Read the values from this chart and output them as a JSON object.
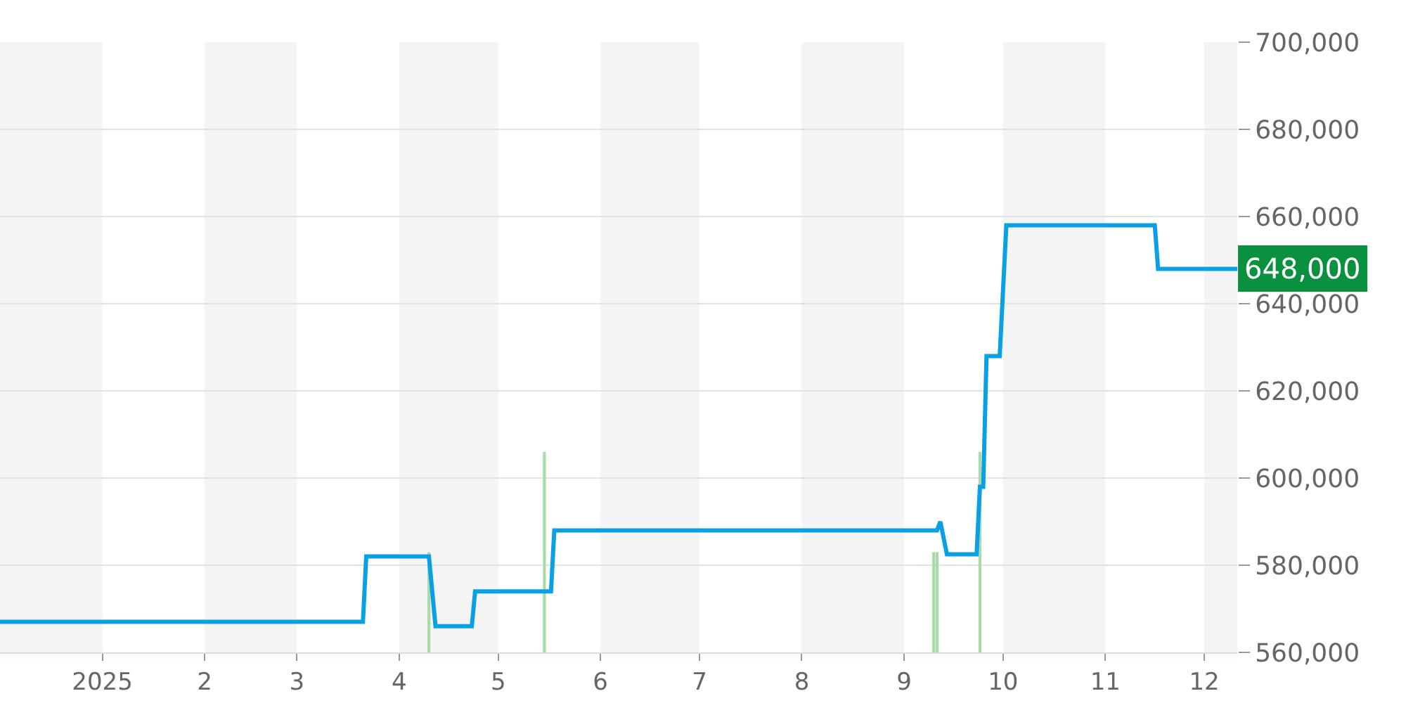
{
  "chart_data": {
    "type": "line",
    "xlim": [
      "2024-12-01",
      "2025-12-11"
    ],
    "xticks": [
      {
        "value": "2025-01-01",
        "label": "2025"
      },
      {
        "value": "2025-02-01",
        "label": "2"
      },
      {
        "value": "2025-03-01",
        "label": "3"
      },
      {
        "value": "2025-04-01",
        "label": "4"
      },
      {
        "value": "2025-05-01",
        "label": "5"
      },
      {
        "value": "2025-06-01",
        "label": "6"
      },
      {
        "value": "2025-07-01",
        "label": "7"
      },
      {
        "value": "2025-08-01",
        "label": "8"
      },
      {
        "value": "2025-09-01",
        "label": "9"
      },
      {
        "value": "2025-10-01",
        "label": "10"
      },
      {
        "value": "2025-11-01",
        "label": "11"
      },
      {
        "value": "2025-12-01",
        "label": "12"
      }
    ],
    "ylim": [
      560000,
      700000
    ],
    "yticks": [
      {
        "value": 560000,
        "label": "560,000"
      },
      {
        "value": 580000,
        "label": "580,000"
      },
      {
        "value": 600000,
        "label": "600,000"
      },
      {
        "value": 620000,
        "label": "620,000"
      },
      {
        "value": 640000,
        "label": "640,000"
      },
      {
        "value": 660000,
        "label": "660,000"
      },
      {
        "value": 680000,
        "label": "680,000"
      },
      {
        "value": 700000,
        "label": "700,000"
      }
    ],
    "grid": "y",
    "series": [
      {
        "color": "#0aa0e6",
        "x": [
          "2024-12-01",
          "2025-03-21",
          "2025-03-22",
          "2025-04-10",
          "2025-04-12",
          "2025-04-23",
          "2025-04-24",
          "2025-05-17",
          "2025-05-18",
          "2025-09-11",
          "2025-09-12",
          "2025-09-14",
          "2025-09-23",
          "2025-09-24",
          "2025-09-25",
          "2025-09-26",
          "2025-09-30",
          "2025-10-02",
          "2025-11-16",
          "2025-11-17",
          "2025-12-11"
        ],
        "values": [
          567000,
          567000,
          582000,
          582000,
          566000,
          566000,
          574000,
          574000,
          588000,
          588000,
          590000,
          582500,
          582500,
          598000,
          598000,
          628000,
          628000,
          658000,
          658000,
          648000,
          648000
        ]
      },
      {
        "type": "bar",
        "color": "#a9dba9",
        "x": [
          "2025-04-10",
          "2025-05-15",
          "2025-09-10",
          "2025-09-11",
          "2025-09-24"
        ],
        "values": [
          583000,
          606000,
          583000,
          583000,
          606000
        ]
      }
    ],
    "bands": [
      {
        "axis": "x",
        "from": "2024-12-01",
        "to": "2025-01-01",
        "color": "#f4f4f4"
      },
      {
        "axis": "x",
        "from": "2025-02-01",
        "to": "2025-03-01",
        "color": "#f4f4f4"
      },
      {
        "axis": "x",
        "from": "2025-04-01",
        "to": "2025-05-01",
        "color": "#f4f4f4"
      },
      {
        "axis": "x",
        "from": "2025-06-01",
        "to": "2025-07-01",
        "color": "#f4f4f4"
      },
      {
        "axis": "x",
        "from": "2025-08-01",
        "to": "2025-09-01",
        "color": "#f4f4f4"
      },
      {
        "axis": "x",
        "from": "2025-10-01",
        "to": "2025-11-01",
        "color": "#f4f4f4"
      },
      {
        "axis": "x",
        "from": "2025-12-01",
        "to": "2025-12-11",
        "color": "#f4f4f4"
      }
    ],
    "annotations": [
      {
        "text": "648,000",
        "x": "2025-12-11",
        "y": 648000
      }
    ]
  }
}
